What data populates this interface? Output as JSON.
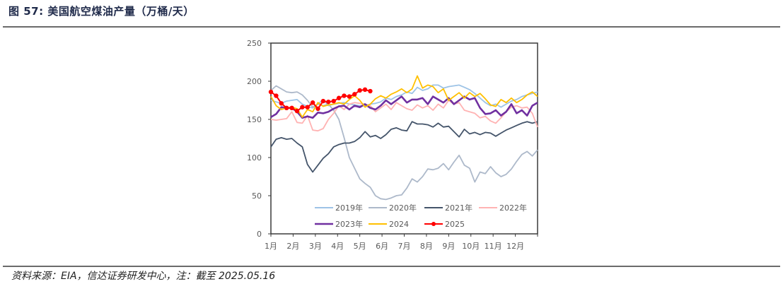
{
  "figure": {
    "title": "图 57:  美国航空煤油产量（万桶/天）",
    "source": "资料来源：EIA，信达证券研发中心，注：截至 2025.05.16"
  },
  "chart_data": {
    "type": "line",
    "title": "美国航空煤油产量（万桶/天）",
    "xlabel": "",
    "ylabel": "",
    "ylim": [
      0,
      250
    ],
    "yticks": [
      0,
      50,
      100,
      150,
      200,
      250
    ],
    "categories": [
      "1月",
      "2月",
      "3月",
      "4月",
      "5月",
      "6月",
      "7月",
      "8月",
      "9月",
      "10月",
      "11月",
      "12月"
    ],
    "points_per_year": 52,
    "grid": false,
    "legend_position": "bottom-inside",
    "series": [
      {
        "name": "2019年",
        "color": "#9DC3E6",
        "marker": false,
        "values": [
          175,
          173,
          171,
          174,
          175,
          176,
          170,
          167,
          165,
          170,
          176,
          168,
          170,
          171,
          172,
          170,
          169,
          168,
          168,
          170,
          171,
          173,
          178,
          176,
          180,
          182,
          186,
          184,
          192,
          188,
          190,
          195,
          195,
          191,
          193,
          194,
          195,
          192,
          189,
          184,
          178,
          172,
          168,
          170,
          166,
          170,
          174,
          176,
          180,
          182,
          184,
          186,
          196
        ]
      },
      {
        "name": "2020年",
        "color": "#ADB9CA",
        "marker": false,
        "values": [
          188,
          194,
          190,
          186,
          185,
          186,
          182,
          175,
          166,
          170,
          168,
          170,
          162,
          150,
          126,
          100,
          86,
          72,
          66,
          61,
          50,
          46,
          45,
          47,
          50,
          51,
          60,
          72,
          68,
          75,
          85,
          84,
          86,
          92,
          84,
          94,
          103,
          90,
          86,
          68,
          81,
          79,
          88,
          80,
          75,
          78,
          85,
          95,
          104,
          108,
          102,
          110,
          112,
          110,
          113,
          118
        ]
      },
      {
        "name": "2021年",
        "color": "#44546A",
        "marker": false,
        "values": [
          114,
          124,
          126,
          124,
          125,
          119,
          114,
          91,
          81,
          90,
          99,
          105,
          114,
          117,
          119,
          119,
          121,
          126,
          134,
          127,
          129,
          125,
          130,
          137,
          139,
          136,
          135,
          147,
          144,
          144,
          143,
          140,
          145,
          140,
          141,
          134,
          127,
          137,
          131,
          133,
          130,
          133,
          132,
          128,
          132,
          136,
          139,
          142,
          145,
          147,
          145,
          147,
          150
        ]
      },
      {
        "name": "2022年",
        "color": "#FFB3B3",
        "marker": false,
        "values": [
          150,
          149,
          150,
          151,
          160,
          146,
          145,
          155,
          136,
          135,
          138,
          150,
          158,
          168,
          163,
          170,
          172,
          171,
          170,
          168,
          160,
          165,
          170,
          163,
          172,
          168,
          164,
          162,
          169,
          165,
          168,
          162,
          170,
          165,
          175,
          170,
          172,
          162,
          160,
          158,
          152,
          154,
          148,
          145,
          152,
          160,
          166,
          168,
          165,
          166,
          158,
          140,
          130
        ]
      },
      {
        "name": "2023年",
        "color": "#7030A0",
        "marker": false,
        "values": [
          153,
          157,
          166,
          165,
          165,
          160,
          152,
          154,
          152,
          159,
          158,
          160,
          164,
          167,
          168,
          163,
          168,
          166,
          170,
          165,
          163,
          168,
          175,
          170,
          175,
          180,
          172,
          176,
          176,
          178,
          170,
          180,
          176,
          172,
          178,
          170,
          175,
          180,
          176,
          178,
          165,
          157,
          158,
          162,
          155,
          160,
          170,
          158,
          162,
          155,
          168,
          172,
          165,
          168,
          178,
          180,
          178,
          182,
          180
        ]
      },
      {
        "name": "2024",
        "color": "#FFC000",
        "marker": false,
        "values": [
          180,
          168,
          163,
          165,
          166,
          164,
          153,
          163,
          160,
          172,
          167,
          169,
          170,
          172,
          170,
          176,
          181,
          175,
          166,
          170,
          177,
          181,
          178,
          183,
          186,
          190,
          185,
          190,
          207,
          191,
          195,
          193,
          185,
          190,
          175,
          180,
          185,
          178,
          185,
          180,
          184,
          177,
          169,
          167,
          176,
          172,
          178,
          172,
          176,
          182,
          186,
          180,
          194,
          181,
          188
        ]
      },
      {
        "name": "2025",
        "color": "#FF0000",
        "marker": true,
        "values": [
          186,
          181,
          171,
          165,
          165,
          161,
          166,
          166,
          172,
          164,
          174,
          173,
          174,
          178,
          181,
          180,
          183,
          188,
          189,
          187
        ]
      }
    ]
  }
}
